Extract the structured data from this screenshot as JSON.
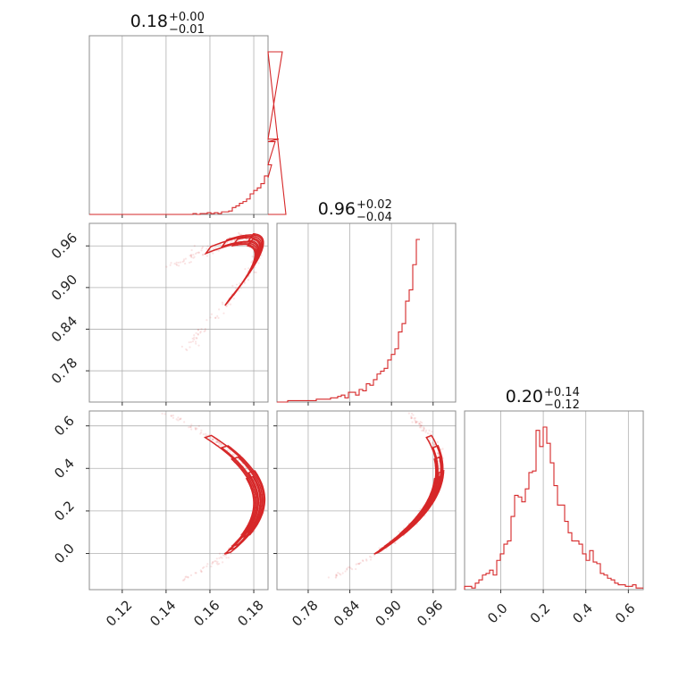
{
  "style": {
    "color": "#d62728"
  },
  "chart_data": {
    "type": "corner",
    "parameters": [
      {
        "title": {
          "median": "0.18",
          "plus": "+0.00",
          "minus": "−0.01"
        },
        "range": [
          0.105,
          0.1865
        ],
        "ticks": [
          0.12,
          0.14,
          0.16,
          0.18
        ],
        "tick_labels": [
          "0.12",
          "0.14",
          "0.16",
          "0.18"
        ],
        "hist": {
          "edges_start": 0.105,
          "bin_width": 0.00163,
          "counts": [
            0,
            0,
            0,
            0,
            0,
            0,
            0,
            0,
            0,
            0,
            0,
            0,
            0,
            0,
            0,
            0,
            0,
            0,
            0,
            0,
            0,
            0,
            0,
            0,
            0,
            0,
            0,
            0,
            0,
            1,
            0,
            1,
            1,
            2,
            1,
            2,
            1,
            3,
            3,
            4,
            8,
            10,
            13,
            15,
            18,
            24,
            28,
            31,
            36,
            45,
            43,
            58,
            85,
            88,
            190,
            0
          ]
        }
      },
      {
        "title": {
          "median": "0.96",
          "plus": "+0.02",
          "minus": "−0.04"
        },
        "range": [
          0.735,
          0.9925
        ],
        "ticks": [
          0.78,
          0.84,
          0.9,
          0.96
        ],
        "tick_labels": [
          "0.78",
          "0.84",
          "0.90",
          "0.96"
        ],
        "hist": {
          "edges_start": 0.735,
          "bin_width": 0.00515,
          "counts": [
            0,
            0,
            0,
            1,
            1,
            1,
            1,
            1,
            1,
            1,
            1,
            2,
            2,
            2,
            2,
            3,
            3,
            4,
            5,
            3,
            7,
            7,
            5,
            9,
            8,
            13,
            12,
            16,
            20,
            22,
            24,
            30,
            34,
            38,
            50,
            56,
            72,
            80,
            98,
            116
          ]
        }
      },
      {
        "title": {
          "median": "0.20",
          "plus": "+0.14",
          "minus": "−0.12"
        },
        "range": [
          -0.17,
          0.67
        ],
        "ticks": [
          0.0,
          0.2,
          0.4,
          0.6
        ],
        "tick_labels": [
          "0.0",
          "0.2",
          "0.4",
          "0.6"
        ],
        "hist": {
          "edges_start": -0.17,
          "bin_width": 0.0168,
          "counts": [
            2,
            2,
            1,
            4,
            6,
            9,
            10,
            12,
            9,
            18,
            22,
            28,
            30,
            45,
            58,
            57,
            54,
            62,
            72,
            73,
            98,
            88,
            100,
            90,
            78,
            64,
            52,
            52,
            42,
            35,
            30,
            30,
            28,
            22,
            18,
            24,
            17,
            16,
            10,
            9,
            7,
            6,
            4,
            3,
            3,
            2,
            2,
            3,
            1,
            1
          ]
        }
      }
    ]
  }
}
